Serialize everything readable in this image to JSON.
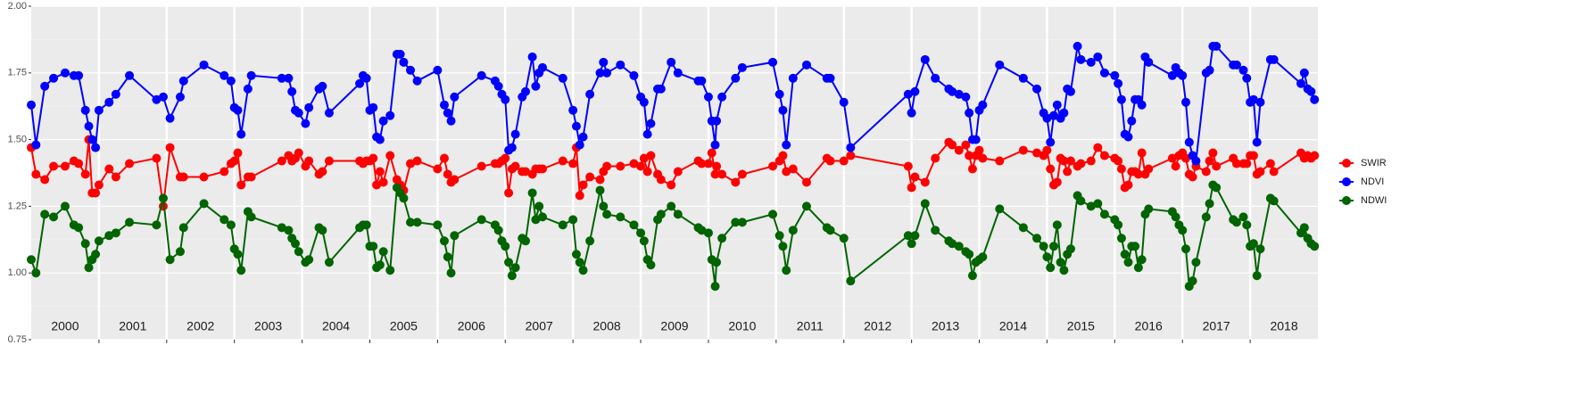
{
  "chart_data": {
    "type": "line",
    "x": [
      2000,
      2000.07,
      2000.2,
      2000.33,
      2000.5,
      2000.63,
      2000.7,
      2000.8,
      2000.85,
      2000.9,
      2000.95,
      2001,
      2001.15,
      2001.25,
      2001.45,
      2001.85,
      2001.95,
      2002.05,
      2002.2,
      2002.25,
      2002.55,
      2002.85,
      2002.95,
      2003,
      2003.05,
      2003.1,
      2003.2,
      2003.25,
      2003.7,
      2003.8,
      2003.85,
      2003.9,
      2003.95,
      2004.05,
      2004.1,
      2004.25,
      2004.3,
      2004.4,
      2004.85,
      2004.9,
      2004.95,
      2005,
      2005.05,
      2005.1,
      2005.15,
      2005.2,
      2005.3,
      2005.4,
      2005.45,
      2005.5,
      2005.6,
      2005.7,
      2006,
      2006.1,
      2006.15,
      2006.2,
      2006.25,
      2006.65,
      2006.85,
      2006.9,
      2006.95,
      2007,
      2007.05,
      2007.1,
      2007.15,
      2007.25,
      2007.3,
      2007.4,
      2007.45,
      2007.5,
      2007.55,
      2007.85,
      2008,
      2008.05,
      2008.1,
      2008.15,
      2008.25,
      2008.4,
      2008.45,
      2008.5,
      2008.7,
      2008.9,
      2009,
      2009.05,
      2009.1,
      2009.15,
      2009.25,
      2009.3,
      2009.45,
      2009.55,
      2009.85,
      2009.9,
      2010,
      2010.05,
      2010.1,
      2010.12,
      2010.2,
      2010.4,
      2010.5,
      2010.95,
      2011.05,
      2011.1,
      2011.15,
      2011.25,
      2011.45,
      2011.75,
      2011.8,
      2012,
      2012.1,
      2012.95,
      2013,
      2013.05,
      2013.2,
      2013.35,
      2013.55,
      2013.6,
      2013.7,
      2013.8,
      2013.85,
      2013.9,
      2013.95,
      2014,
      2014.05,
      2014.3,
      2014.65,
      2014.85,
      2014.95,
      2015,
      2015.05,
      2015.1,
      2015.15,
      2015.2,
      2015.25,
      2015.3,
      2015.35,
      2015.45,
      2015.5,
      2015.65,
      2015.75,
      2015.85,
      2016,
      2016.05,
      2016.1,
      2016.15,
      2016.2,
      2016.25,
      2016.3,
      2016.35,
      2016.4,
      2016.45,
      2016.5,
      2016.85,
      2016.9,
      2016.95,
      2017,
      2017.05,
      2017.1,
      2017.15,
      2017.2,
      2017.35,
      2017.4,
      2017.45,
      2017.5,
      2017.75,
      2017.8,
      2017.9,
      2017.95,
      2018,
      2018.05,
      2018.1,
      2018.15,
      2018.3,
      2018.35,
      2018.75,
      2018.8,
      2018.85,
      2018.9,
      2018.95
    ],
    "xlim": [
      2000,
      2019
    ],
    "xticks": [
      {
        "value": 2000.5,
        "label": "2000"
      },
      {
        "value": 2001.5,
        "label": "2001"
      },
      {
        "value": 2002.5,
        "label": "2002"
      },
      {
        "value": 2003.5,
        "label": "2003"
      },
      {
        "value": 2004.5,
        "label": "2004"
      },
      {
        "value": 2005.5,
        "label": "2005"
      },
      {
        "value": 2006.5,
        "label": "2006"
      },
      {
        "value": 2007.5,
        "label": "2007"
      },
      {
        "value": 2008.5,
        "label": "2008"
      },
      {
        "value": 2009.5,
        "label": "2009"
      },
      {
        "value": 2010.5,
        "label": "2010"
      },
      {
        "value": 2011.5,
        "label": "2011"
      },
      {
        "value": 2012.5,
        "label": "2012"
      },
      {
        "value": 2013.5,
        "label": "2013"
      },
      {
        "value": 2014.5,
        "label": "2014"
      },
      {
        "value": 2015.5,
        "label": "2015"
      },
      {
        "value": 2016.5,
        "label": "2016"
      },
      {
        "value": 2017.5,
        "label": "2017"
      },
      {
        "value": 2018.5,
        "label": "2018"
      }
    ],
    "ylim": [
      0.75,
      2.0
    ],
    "yticks": [
      0.75,
      {
        "value": 1.0,
        "label": "1.00"
      },
      1.25,
      {
        "value": 1.5,
        "label": "1.50"
      },
      1.75,
      {
        "value": 2.0,
        "label": "2.00"
      }
    ],
    "grid": true,
    "legend": "right",
    "series": [
      {
        "name": "SWIR",
        "color": "#ff0000",
        "values": [
          1.47,
          1.37,
          1.35,
          1.4,
          1.4,
          1.42,
          1.41,
          1.37,
          1.5,
          1.3,
          1.3,
          1.33,
          1.39,
          1.36,
          1.41,
          1.43,
          1.25,
          1.47,
          1.36,
          1.36,
          1.36,
          1.38,
          1.41,
          1.42,
          1.45,
          1.33,
          1.36,
          1.36,
          1.42,
          1.44,
          1.42,
          1.43,
          1.45,
          1.4,
          1.42,
          1.37,
          1.38,
          1.42,
          1.42,
          1.41,
          1.42,
          1.42,
          1.43,
          1.33,
          1.38,
          1.34,
          1.44,
          1.35,
          1.33,
          1.31,
          1.41,
          1.42,
          1.39,
          1.43,
          1.37,
          1.34,
          1.35,
          1.4,
          1.41,
          1.41,
          1.42,
          1.43,
          1.3,
          1.39,
          1.4,
          1.38,
          1.38,
          1.37,
          1.39,
          1.39,
          1.39,
          1.42,
          1.41,
          1.47,
          1.29,
          1.33,
          1.36,
          1.35,
          1.38,
          1.4,
          1.4,
          1.41,
          1.4,
          1.43,
          1.38,
          1.44,
          1.37,
          1.35,
          1.33,
          1.38,
          1.42,
          1.41,
          1.41,
          1.45,
          1.37,
          1.4,
          1.37,
          1.34,
          1.37,
          1.4,
          1.42,
          1.44,
          1.38,
          1.39,
          1.34,
          1.43,
          1.42,
          1.42,
          1.44,
          1.4,
          1.32,
          1.36,
          1.34,
          1.43,
          1.49,
          1.48,
          1.46,
          1.48,
          1.44,
          1.39,
          1.44,
          1.46,
          1.43,
          1.42,
          1.46,
          1.45,
          1.44,
          1.46,
          1.39,
          1.33,
          1.34,
          1.43,
          1.42,
          1.38,
          1.42,
          1.4,
          1.41,
          1.42,
          1.47,
          1.44,
          1.43,
          1.42,
          1.39,
          1.32,
          1.33,
          1.38,
          1.38,
          1.37,
          1.45,
          1.37,
          1.39,
          1.43,
          1.4,
          1.44,
          1.45,
          1.43,
          1.37,
          1.36,
          1.4,
          1.38,
          1.42,
          1.45,
          1.4,
          1.43,
          1.41,
          1.41,
          1.41,
          1.44,
          1.44,
          1.37,
          1.38,
          1.41,
          1.38,
          1.45,
          1.43,
          1.44,
          1.43,
          1.44
        ]
      },
      {
        "name": "NDVI",
        "color": "#0000ff",
        "values": [
          1.63,
          1.48,
          1.7,
          1.73,
          1.75,
          1.74,
          1.74,
          1.61,
          1.55,
          1.5,
          1.47,
          1.61,
          1.64,
          1.67,
          1.74,
          1.65,
          1.66,
          1.58,
          1.66,
          1.72,
          1.78,
          1.74,
          1.72,
          1.62,
          1.61,
          1.52,
          1.69,
          1.74,
          1.73,
          1.73,
          1.68,
          1.61,
          1.6,
          1.56,
          1.62,
          1.69,
          1.7,
          1.6,
          1.71,
          1.74,
          1.73,
          1.61,
          1.62,
          1.51,
          1.5,
          1.57,
          1.59,
          1.82,
          1.82,
          1.79,
          1.76,
          1.72,
          1.76,
          1.63,
          1.6,
          1.57,
          1.66,
          1.74,
          1.72,
          1.7,
          1.67,
          1.65,
          1.46,
          1.47,
          1.52,
          1.66,
          1.68,
          1.81,
          1.7,
          1.75,
          1.77,
          1.73,
          1.61,
          1.55,
          1.48,
          1.51,
          1.67,
          1.75,
          1.79,
          1.75,
          1.78,
          1.74,
          1.66,
          1.64,
          1.52,
          1.56,
          1.69,
          1.69,
          1.79,
          1.75,
          1.72,
          1.72,
          1.66,
          1.57,
          1.48,
          1.57,
          1.66,
          1.73,
          1.77,
          1.79,
          1.67,
          1.61,
          1.48,
          1.73,
          1.78,
          1.73,
          1.73,
          1.64,
          1.47,
          1.67,
          1.6,
          1.68,
          1.8,
          1.73,
          1.69,
          1.68,
          1.67,
          1.66,
          1.6,
          1.5,
          1.5,
          1.61,
          1.63,
          1.78,
          1.73,
          1.69,
          1.6,
          1.58,
          1.49,
          1.59,
          1.63,
          1.58,
          1.6,
          1.69,
          1.68,
          1.85,
          1.8,
          1.79,
          1.81,
          1.75,
          1.74,
          1.71,
          1.65,
          1.52,
          1.51,
          1.57,
          1.65,
          1.65,
          1.63,
          1.81,
          1.79,
          1.74,
          1.77,
          1.75,
          1.74,
          1.64,
          1.49,
          1.44,
          1.42,
          1.75,
          1.76,
          1.85,
          1.85,
          1.78,
          1.78,
          1.76,
          1.73,
          1.64,
          1.65,
          1.49,
          1.64,
          1.8,
          1.8,
          1.71,
          1.75,
          1.69,
          1.68,
          1.65
        ]
      },
      {
        "name": "NDWI",
        "color": "#006400",
        "values": [
          1.05,
          1.0,
          1.22,
          1.21,
          1.25,
          1.18,
          1.17,
          1.11,
          1.02,
          1.05,
          1.07,
          1.12,
          1.14,
          1.15,
          1.19,
          1.18,
          1.28,
          1.05,
          1.08,
          1.17,
          1.26,
          1.2,
          1.18,
          1.09,
          1.07,
          1.01,
          1.23,
          1.21,
          1.17,
          1.16,
          1.13,
          1.11,
          1.08,
          1.04,
          1.05,
          1.17,
          1.16,
          1.04,
          1.17,
          1.18,
          1.18,
          1.1,
          1.1,
          1.02,
          1.03,
          1.08,
          1.01,
          1.32,
          1.3,
          1.28,
          1.19,
          1.19,
          1.18,
          1.12,
          1.06,
          1.0,
          1.14,
          1.2,
          1.18,
          1.16,
          1.12,
          1.1,
          1.04,
          0.99,
          1.02,
          1.13,
          1.12,
          1.3,
          1.2,
          1.25,
          1.21,
          1.18,
          1.2,
          1.07,
          1.04,
          1.01,
          1.12,
          1.31,
          1.25,
          1.22,
          1.21,
          1.18,
          1.15,
          1.12,
          1.05,
          1.03,
          1.2,
          1.22,
          1.25,
          1.22,
          1.17,
          1.16,
          1.15,
          1.05,
          0.95,
          1.04,
          1.13,
          1.19,
          1.19,
          1.22,
          1.14,
          1.1,
          1.01,
          1.16,
          1.25,
          1.17,
          1.16,
          1.13,
          0.97,
          1.14,
          1.11,
          1.14,
          1.26,
          1.16,
          1.12,
          1.11,
          1.1,
          1.08,
          1.07,
          0.99,
          1.04,
          1.05,
          1.06,
          1.24,
          1.17,
          1.13,
          1.1,
          1.06,
          1.02,
          1.1,
          1.18,
          1.04,
          1.01,
          1.07,
          1.09,
          1.29,
          1.27,
          1.25,
          1.26,
          1.22,
          1.2,
          1.18,
          1.13,
          1.07,
          1.04,
          1.1,
          1.1,
          1.02,
          1.05,
          1.22,
          1.24,
          1.23,
          1.21,
          1.18,
          1.16,
          1.09,
          0.95,
          0.97,
          1.04,
          1.21,
          1.26,
          1.33,
          1.32,
          1.2,
          1.19,
          1.21,
          1.18,
          1.1,
          1.11,
          0.99,
          1.09,
          1.28,
          1.27,
          1.15,
          1.17,
          1.13,
          1.11,
          1.1
        ]
      }
    ]
  }
}
